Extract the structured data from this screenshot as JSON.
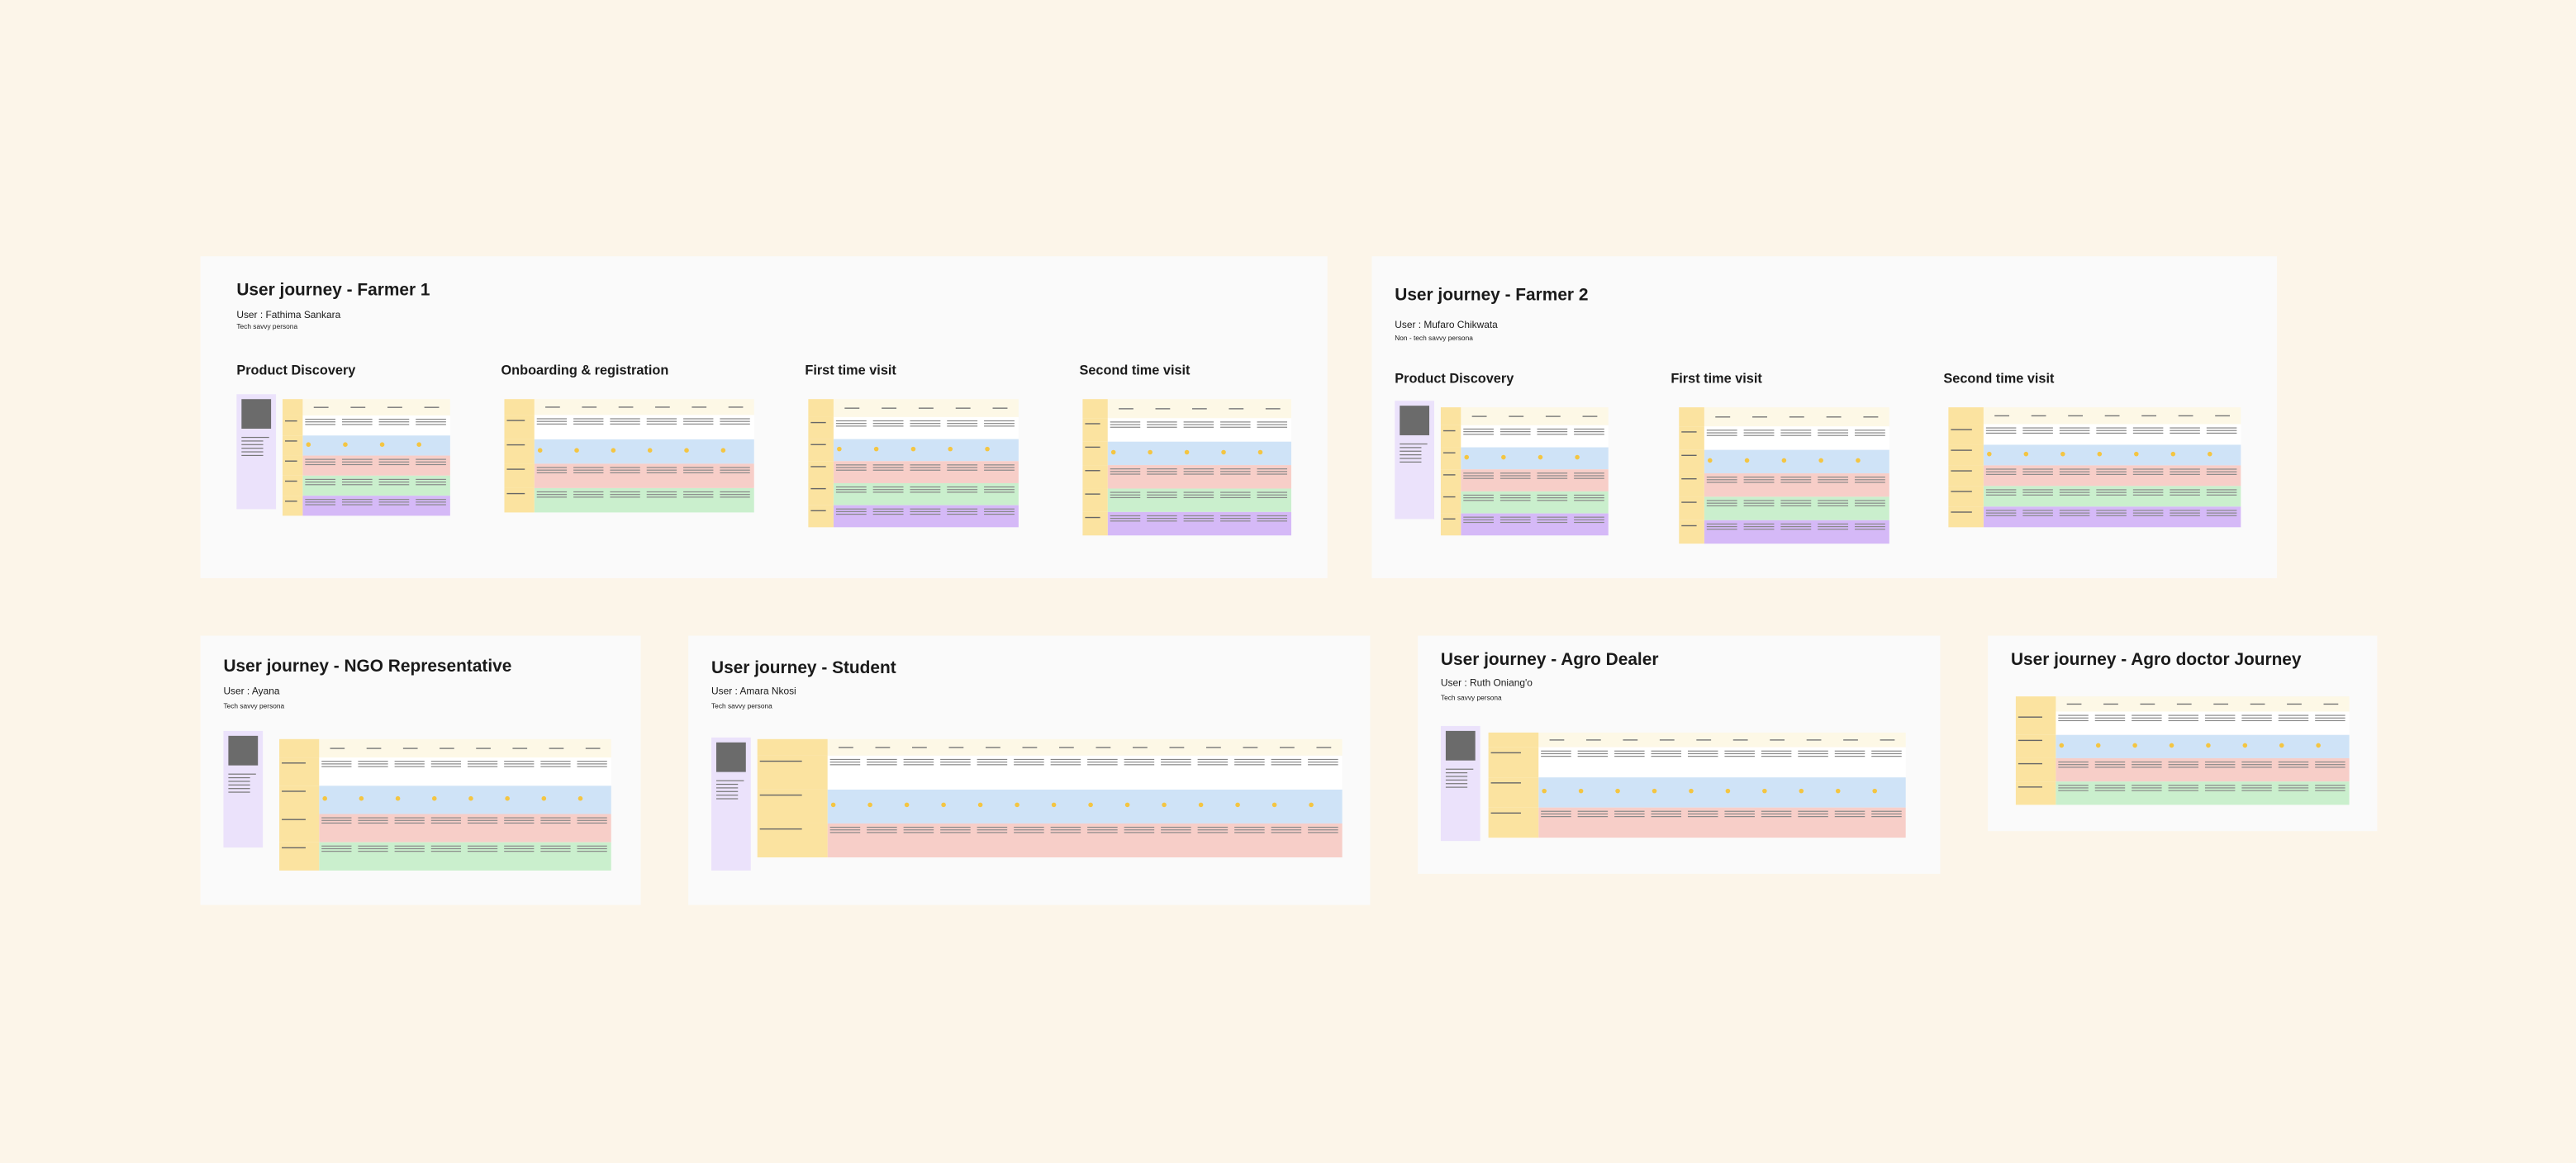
{
  "boards": [
    {
      "title": "User journey - Farmer 1",
      "user": "User : Fathima Sankara",
      "persona": "Tech savvy persona",
      "sections": [
        "Product Discovery",
        "Onboarding & registration",
        "First time visit",
        "Second time visit"
      ]
    },
    {
      "title": "User journey - Farmer 2",
      "user": "User : Mufaro Chikwata",
      "persona": "Non - tech savvy persona",
      "sections": [
        "Product Discovery",
        "First time visit",
        "Second time visit"
      ]
    },
    {
      "title": "User journey - NGO Representative",
      "user": "User : Ayana",
      "persona": "Tech savvy persona"
    },
    {
      "title": "User journey - Student",
      "user": "User : Amara Nkosi",
      "persona": "Tech savvy persona"
    },
    {
      "title": "User journey - Agro Dealer",
      "user": "User : Ruth Oniang'o",
      "persona": "Tech savvy persona"
    },
    {
      "title": "User journey - Agro doctor Journey"
    }
  ]
}
